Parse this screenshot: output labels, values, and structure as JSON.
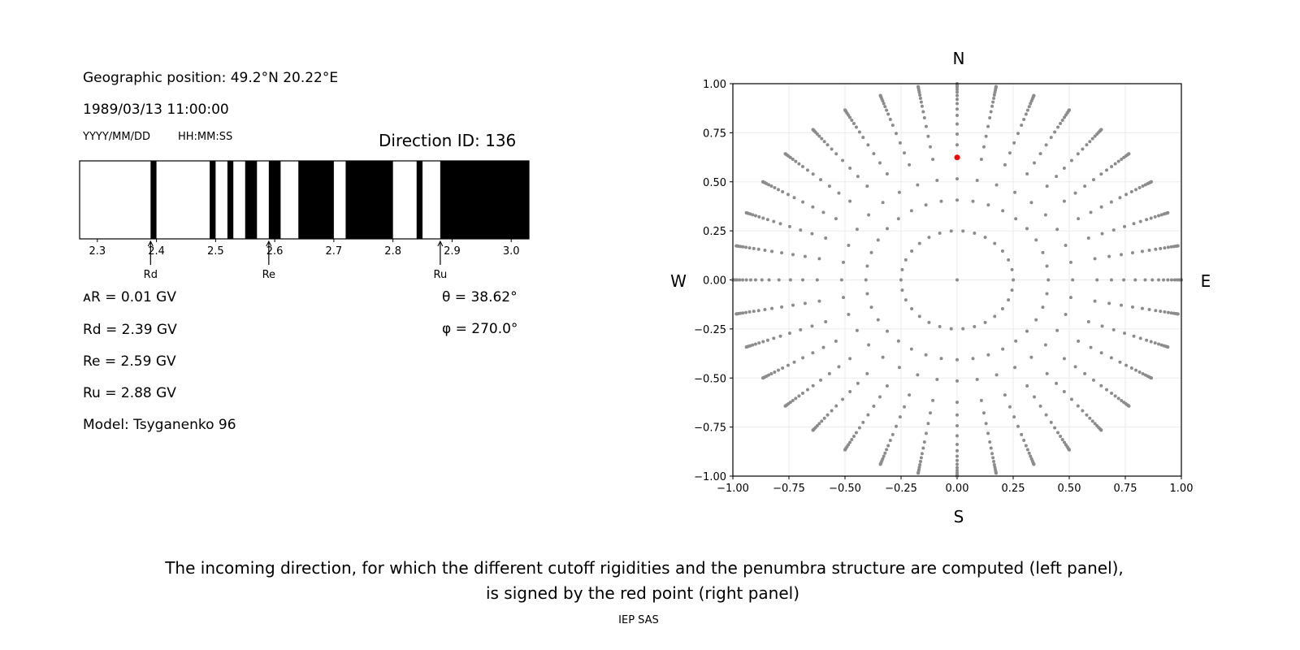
{
  "left_panel": {
    "position": "Geographic position: 49.2°N 20.22°E",
    "datetime": "1989/03/13 11:00:00",
    "date_format": "YYYY/MM/DD",
    "time_format": "HH:MM:SS",
    "direction_id": "Direction ID: 136",
    "delta_r": "ᴀR = 0.01 GV",
    "rd": "Rd = 2.39 GV",
    "re": "Re = 2.59 GV",
    "ru": "Ru = 2.88 GV",
    "model": "Model: Tsyganenko 96",
    "theta": "θ = 38.62°",
    "phi": "φ = 270.0°"
  },
  "caption": {
    "line1": "The incoming direction, for which the different cutoff rigidities and the penumbra structure are computed (left panel),",
    "line2": "is signed by the red point (right panel)",
    "credit": "IEP SAS"
  },
  "chart_data": [
    {
      "type": "bar",
      "description_kind": "penumbra",
      "xlim": [
        2.27,
        3.03
      ],
      "xticks": [
        "2.3",
        "2.4",
        "2.5",
        "2.6",
        "2.7",
        "2.8",
        "2.9",
        "3.0"
      ],
      "xtick_values": [
        2.3,
        2.4,
        2.5,
        2.6,
        2.7,
        2.8,
        2.9,
        3.0
      ],
      "forbidden_bands": [
        [
          2.39,
          2.4
        ],
        [
          2.49,
          2.5
        ],
        [
          2.52,
          2.53
        ],
        [
          2.55,
          2.57
        ],
        [
          2.59,
          2.61
        ],
        [
          2.64,
          2.7
        ],
        [
          2.72,
          2.8
        ],
        [
          2.84,
          2.85
        ],
        [
          2.88,
          3.03
        ]
      ],
      "markers": [
        {
          "label": "Rd",
          "value": 2.39
        },
        {
          "label": "Re",
          "value": 2.59
        },
        {
          "label": "Ru",
          "value": 2.88
        }
      ],
      "colors": {
        "forbidden": "#000000",
        "allowed": "#ffffff"
      }
    },
    {
      "type": "scatter",
      "xlim": [
        -1.0,
        1.0
      ],
      "ylim": [
        -1.0,
        1.0
      ],
      "xticks": [
        "−1.00",
        "−0.75",
        "−0.50",
        "−0.25",
        "0.00",
        "0.25",
        "0.50",
        "0.75",
        "1.00"
      ],
      "yticks": [
        "−1.00",
        "−0.75",
        "−0.50",
        "−0.25",
        "0.00",
        "0.25",
        "0.50",
        "0.75",
        "1.00"
      ],
      "tick_values": [
        -1,
        -0.75,
        -0.5,
        -0.25,
        0,
        0.25,
        0.5,
        0.75,
        1
      ],
      "grid": true,
      "directions": {
        "N": "N",
        "S": "S",
        "E": "E",
        "W": "W"
      },
      "direction_grid": {
        "projection": "r = sin(theta)",
        "ring_theta_deg": 14.5,
        "ring_points": 30,
        "spoke_phi_step_deg": 10,
        "spoke_theta_deg": [
          24,
          31,
          38.6,
          43.5,
          48,
          52.6,
          57,
          60.5,
          64,
          67,
          70,
          73,
          76,
          79,
          82,
          85,
          87.5,
          90
        ]
      },
      "selected": {
        "theta_deg": 38.62,
        "phi_deg": 270.0,
        "x": 0.0,
        "y": 0.624
      },
      "colors": {
        "grid_points": "#8c8c8c",
        "selected": "#ff0000"
      }
    }
  ]
}
